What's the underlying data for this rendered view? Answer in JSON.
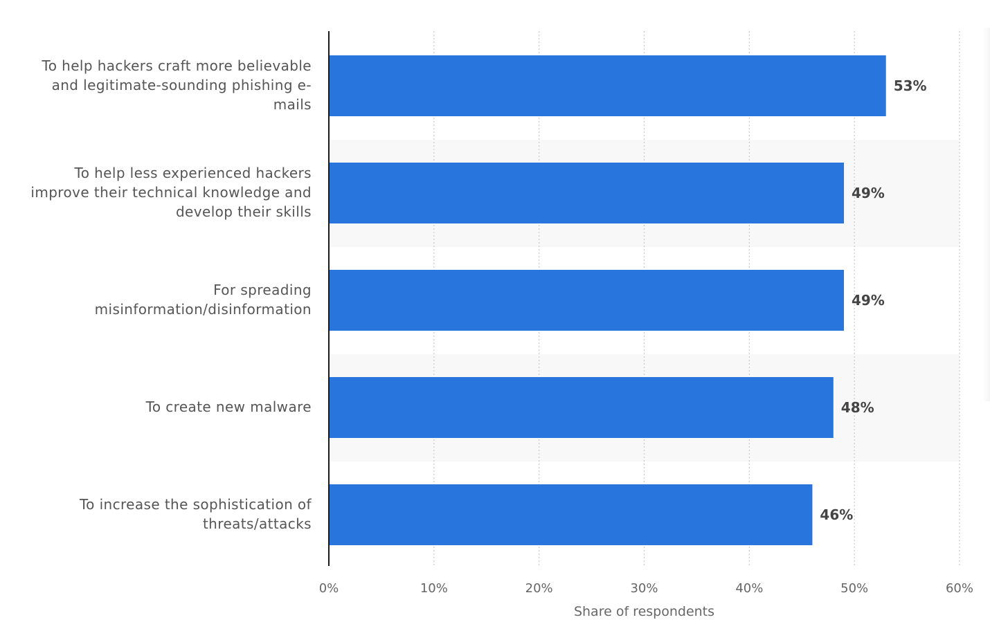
{
  "colors": {
    "bar": "#2876dd",
    "band": "#f8f8f8",
    "grid": "#c8c8c8",
    "axis": "#1a1a1a",
    "tick_text": "#666666",
    "value_text": "#444444"
  },
  "chart_data": {
    "type": "bar",
    "orientation": "horizontal",
    "categories": [
      "To help hackers craft more believable and legitimate-sounding phishing e-mails",
      "To help less experienced hackers improve their technical knowledge and develop their skills",
      "For spreading misinformation/disinformation",
      "To create new malware",
      "To increase the sophistication of threats/attacks"
    ],
    "category_lines": [
      [
        "To help hackers craft more believable",
        "and legitimate-sounding phishing e-",
        "mails"
      ],
      [
        "To help less experienced hackers",
        "improve their technical knowledge and",
        "develop their skills"
      ],
      [
        "For spreading",
        "misinformation/disinformation"
      ],
      [
        "To create new malware"
      ],
      [
        "To increase the sophistication of",
        "threats/attacks"
      ]
    ],
    "values": [
      53,
      49,
      49,
      48,
      46
    ],
    "value_labels": [
      "53%",
      "49%",
      "49%",
      "48%",
      "46%"
    ],
    "xticks": [
      0,
      10,
      20,
      30,
      40,
      50,
      60
    ],
    "xtick_labels": [
      "0%",
      "10%",
      "20%",
      "30%",
      "40%",
      "50%",
      "60%"
    ],
    "xlim": [
      0,
      60
    ],
    "xlabel": "Share of respondents",
    "ylabel": "",
    "title": "",
    "grid": true
  }
}
